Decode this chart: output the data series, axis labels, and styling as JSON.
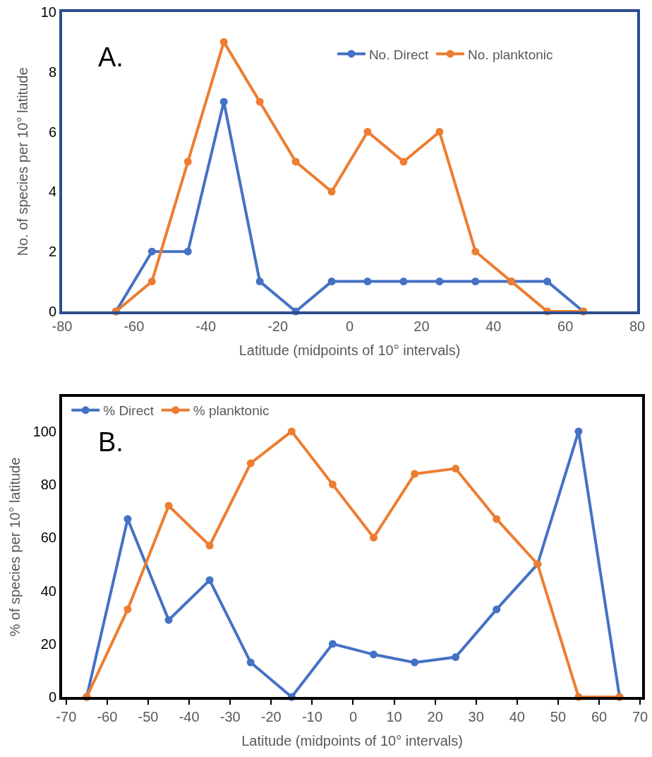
{
  "chart_data": [
    {
      "type": "line",
      "xlabel": "Latitude (midpoints of 10° intervals)",
      "ylabel": "No. of species per 10° latitude",
      "annotations": [
        "A."
      ],
      "x": [
        -65,
        -55,
        -45,
        -35,
        -25,
        -15,
        -5,
        5,
        15,
        25,
        35,
        45,
        55,
        65
      ],
      "xlim": [
        -80,
        80
      ],
      "xticks": [
        -80,
        -60,
        -40,
        -20,
        0,
        20,
        40,
        60,
        80
      ],
      "ylim": [
        0,
        10
      ],
      "yticks": [
        0,
        2,
        4,
        6,
        8,
        10
      ],
      "marker": "circle",
      "line_style": "solid",
      "legend": "top right",
      "series": [
        {
          "name": "No. Direct",
          "color": "#4472c4",
          "values": [
            0,
            2,
            2,
            7,
            1,
            0,
            1,
            1,
            1,
            1,
            1,
            1,
            1,
            0
          ]
        },
        {
          "name": "No. planktonic",
          "color": "#ed7d31",
          "values": [
            0,
            1,
            5,
            9,
            7,
            5,
            4,
            6,
            5,
            6,
            2,
            1,
            0,
            0
          ]
        }
      ]
    },
    {
      "type": "line",
      "xlabel": "Latitude (midpoints of 10° intervals)",
      "ylabel": "% of species per 10° latitude",
      "annotations": [
        "B."
      ],
      "x": [
        -65,
        -55,
        -45,
        -35,
        -25,
        -15,
        -5,
        5,
        15,
        25,
        35,
        45,
        55,
        65
      ],
      "xlim": [
        -71,
        70.5
      ],
      "xticks": [
        -70,
        -60,
        -50,
        -40,
        -30,
        -20,
        -10,
        0,
        10,
        20,
        30,
        40,
        50,
        60,
        70
      ],
      "ylim": [
        0,
        113
      ],
      "yticks": [
        0,
        20,
        40,
        60,
        80,
        100
      ],
      "marker": "circle",
      "line_style": "solid",
      "legend": "top left",
      "series": [
        {
          "name": "% Direct",
          "color": "#4472c4",
          "values": [
            0,
            67,
            29,
            44,
            13,
            0,
            20,
            16,
            13,
            15,
            33,
            50,
            100,
            0
          ]
        },
        {
          "name": "% planktonic",
          "color": "#ed7d31",
          "values": [
            0,
            33,
            72,
            57,
            88,
            100,
            80,
            60,
            84,
            86,
            67,
            50,
            0,
            0
          ]
        }
      ]
    }
  ]
}
